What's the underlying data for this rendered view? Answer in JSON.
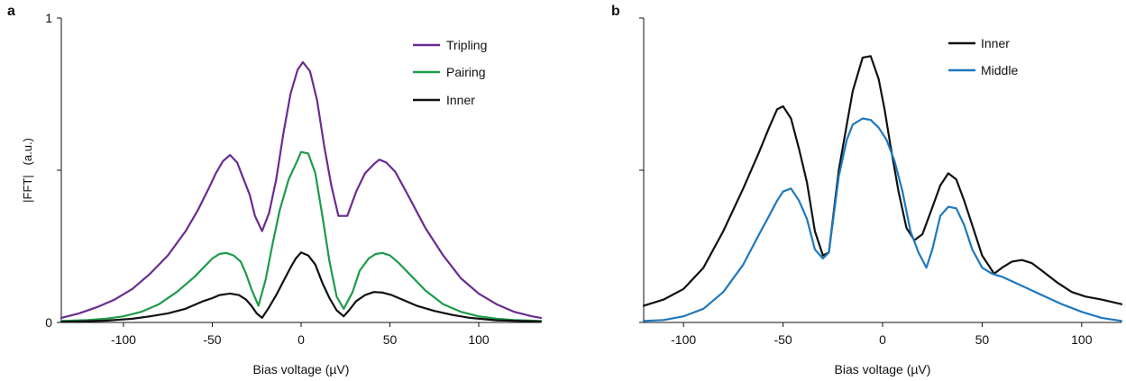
{
  "chart_data": [
    {
      "panel_label": "a",
      "type": "line",
      "xlabel": "Bias voltage (µV)",
      "ylabel": "|FFT|   (a.u.)",
      "xlim": [
        -135,
        135
      ],
      "ylim": [
        0,
        1
      ],
      "x_ticks": [
        -100,
        -50,
        0,
        50,
        100
      ],
      "x_tick_labels": [
        "-100",
        "-50",
        "0",
        "50",
        "100"
      ],
      "y_ticks": [
        0,
        0.5,
        1
      ],
      "y_tick_labels": [
        "0",
        "",
        "1"
      ],
      "grid": false,
      "legend_position": "top-right",
      "series": [
        {
          "name": "Tripling",
          "color": "#6a2c91",
          "points": [
            [
              -135,
              0.015
            ],
            [
              -125,
              0.03
            ],
            [
              -115,
              0.05
            ],
            [
              -105,
              0.075
            ],
            [
              -95,
              0.11
            ],
            [
              -85,
              0.16
            ],
            [
              -75,
              0.22
            ],
            [
              -65,
              0.3
            ],
            [
              -58,
              0.37
            ],
            [
              -52,
              0.44
            ],
            [
              -48,
              0.49
            ],
            [
              -44,
              0.53
            ],
            [
              -40,
              0.55
            ],
            [
              -36,
              0.525
            ],
            [
              -33,
              0.48
            ],
            [
              -29,
              0.42
            ],
            [
              -26,
              0.35
            ],
            [
              -22,
              0.3
            ],
            [
              -18,
              0.36
            ],
            [
              -14,
              0.47
            ],
            [
              -10,
              0.62
            ],
            [
              -6,
              0.75
            ],
            [
              -2,
              0.83
            ],
            [
              1,
              0.855
            ],
            [
              5,
              0.825
            ],
            [
              9,
              0.73
            ],
            [
              13,
              0.58
            ],
            [
              17,
              0.45
            ],
            [
              21,
              0.35
            ],
            [
              26,
              0.35
            ],
            [
              31,
              0.43
            ],
            [
              36,
              0.49
            ],
            [
              41,
              0.52
            ],
            [
              44,
              0.535
            ],
            [
              48,
              0.525
            ],
            [
              53,
              0.495
            ],
            [
              60,
              0.42
            ],
            [
              70,
              0.31
            ],
            [
              80,
              0.22
            ],
            [
              90,
              0.145
            ],
            [
              100,
              0.095
            ],
            [
              110,
              0.06
            ],
            [
              120,
              0.035
            ],
            [
              130,
              0.02
            ],
            [
              135,
              0.015
            ]
          ]
        },
        {
          "name": "Pairing",
          "color": "#1e9b4a",
          "points": [
            [
              -135,
              0.005
            ],
            [
              -120,
              0.008
            ],
            [
              -110,
              0.012
            ],
            [
              -100,
              0.02
            ],
            [
              -90,
              0.035
            ],
            [
              -80,
              0.06
            ],
            [
              -70,
              0.1
            ],
            [
              -60,
              0.15
            ],
            [
              -55,
              0.18
            ],
            [
              -50,
              0.21
            ],
            [
              -46,
              0.225
            ],
            [
              -42,
              0.228
            ],
            [
              -38,
              0.22
            ],
            [
              -34,
              0.2
            ],
            [
              -31,
              0.16
            ],
            [
              -28,
              0.11
            ],
            [
              -24,
              0.055
            ],
            [
              -20,
              0.14
            ],
            [
              -16,
              0.26
            ],
            [
              -12,
              0.37
            ],
            [
              -7,
              0.47
            ],
            [
              -3,
              0.52
            ],
            [
              0,
              0.56
            ],
            [
              4,
              0.555
            ],
            [
              8,
              0.49
            ],
            [
              12,
              0.35
            ],
            [
              16,
              0.2
            ],
            [
              20,
              0.085
            ],
            [
              24,
              0.045
            ],
            [
              29,
              0.1
            ],
            [
              33,
              0.17
            ],
            [
              38,
              0.21
            ],
            [
              42,
              0.225
            ],
            [
              46,
              0.228
            ],
            [
              50,
              0.22
            ],
            [
              55,
              0.195
            ],
            [
              60,
              0.165
            ],
            [
              70,
              0.105
            ],
            [
              80,
              0.06
            ],
            [
              90,
              0.035
            ],
            [
              100,
              0.02
            ],
            [
              110,
              0.012
            ],
            [
              120,
              0.008
            ],
            [
              135,
              0.005
            ]
          ]
        },
        {
          "name": "Inner",
          "color": "#111111",
          "points": [
            [
              -135,
              0.002
            ],
            [
              -110,
              0.006
            ],
            [
              -95,
              0.012
            ],
            [
              -85,
              0.02
            ],
            [
              -75,
              0.03
            ],
            [
              -65,
              0.045
            ],
            [
              -55,
              0.07
            ],
            [
              -50,
              0.08
            ],
            [
              -46,
              0.09
            ],
            [
              -40,
              0.095
            ],
            [
              -35,
              0.09
            ],
            [
              -31,
              0.075
            ],
            [
              -28,
              0.055
            ],
            [
              -25,
              0.03
            ],
            [
              -22,
              0.015
            ],
            [
              -18,
              0.05
            ],
            [
              -14,
              0.09
            ],
            [
              -10,
              0.135
            ],
            [
              -6,
              0.18
            ],
            [
              -3,
              0.21
            ],
            [
              0,
              0.23
            ],
            [
              4,
              0.22
            ],
            [
              8,
              0.19
            ],
            [
              12,
              0.13
            ],
            [
              16,
              0.08
            ],
            [
              20,
              0.04
            ],
            [
              24,
              0.02
            ],
            [
              27,
              0.04
            ],
            [
              31,
              0.07
            ],
            [
              36,
              0.09
            ],
            [
              41,
              0.1
            ],
            [
              46,
              0.098
            ],
            [
              51,
              0.09
            ],
            [
              57,
              0.075
            ],
            [
              65,
              0.055
            ],
            [
              75,
              0.038
            ],
            [
              85,
              0.025
            ],
            [
              95,
              0.015
            ],
            [
              110,
              0.007
            ],
            [
              135,
              0.003
            ]
          ]
        }
      ]
    },
    {
      "panel_label": "b",
      "type": "line",
      "xlabel": "Bias voltage (µV)",
      "ylabel": "",
      "xlim": [
        -120,
        120
      ],
      "ylim": [
        0,
        1
      ],
      "x_ticks": [
        -100,
        -50,
        0,
        50,
        100
      ],
      "x_tick_labels": [
        "-100",
        "-50",
        "0",
        "50",
        "100"
      ],
      "y_ticks": [
        0,
        0.5,
        1
      ],
      "y_tick_labels": [
        "",
        "",
        ""
      ],
      "grid": false,
      "legend_position": "top-right",
      "series": [
        {
          "name": "Inner",
          "color": "#111111",
          "points": [
            [
              -120,
              0.055
            ],
            [
              -110,
              0.075
            ],
            [
              -100,
              0.11
            ],
            [
              -90,
              0.18
            ],
            [
              -80,
              0.3
            ],
            [
              -70,
              0.44
            ],
            [
              -62,
              0.56
            ],
            [
              -57,
              0.64
            ],
            [
              -53,
              0.7
            ],
            [
              -50,
              0.71
            ],
            [
              -46,
              0.67
            ],
            [
              -42,
              0.57
            ],
            [
              -38,
              0.46
            ],
            [
              -34,
              0.3
            ],
            [
              -30,
              0.22
            ],
            [
              -27,
              0.23
            ],
            [
              -22,
              0.5
            ],
            [
              -18,
              0.65
            ],
            [
              -15,
              0.76
            ],
            [
              -10,
              0.87
            ],
            [
              -6,
              0.875
            ],
            [
              -2,
              0.8
            ],
            [
              1,
              0.7
            ],
            [
              4,
              0.58
            ],
            [
              8,
              0.43
            ],
            [
              12,
              0.31
            ],
            [
              16,
              0.27
            ],
            [
              20,
              0.29
            ],
            [
              24,
              0.36
            ],
            [
              29,
              0.45
            ],
            [
              33,
              0.49
            ],
            [
              37,
              0.47
            ],
            [
              41,
              0.4
            ],
            [
              45,
              0.32
            ],
            [
              50,
              0.22
            ],
            [
              56,
              0.16
            ],
            [
              60,
              0.18
            ],
            [
              65,
              0.2
            ],
            [
              70,
              0.205
            ],
            [
              75,
              0.195
            ],
            [
              80,
              0.17
            ],
            [
              88,
              0.13
            ],
            [
              95,
              0.1
            ],
            [
              102,
              0.085
            ],
            [
              110,
              0.075
            ],
            [
              120,
              0.06
            ]
          ]
        },
        {
          "name": "Middle",
          "color": "#1f78bd",
          "points": [
            [
              -120,
              0.005
            ],
            [
              -110,
              0.008
            ],
            [
              -100,
              0.02
            ],
            [
              -90,
              0.045
            ],
            [
              -80,
              0.1
            ],
            [
              -70,
              0.19
            ],
            [
              -62,
              0.29
            ],
            [
              -57,
              0.35
            ],
            [
              -53,
              0.4
            ],
            [
              -50,
              0.43
            ],
            [
              -46,
              0.44
            ],
            [
              -42,
              0.4
            ],
            [
              -38,
              0.34
            ],
            [
              -34,
              0.24
            ],
            [
              -30,
              0.21
            ],
            [
              -27,
              0.23
            ],
            [
              -22,
              0.48
            ],
            [
              -18,
              0.6
            ],
            [
              -15,
              0.65
            ],
            [
              -10,
              0.67
            ],
            [
              -6,
              0.665
            ],
            [
              -2,
              0.64
            ],
            [
              2,
              0.6
            ],
            [
              6,
              0.53
            ],
            [
              10,
              0.43
            ],
            [
              14,
              0.3
            ],
            [
              18,
              0.23
            ],
            [
              22,
              0.18
            ],
            [
              25,
              0.24
            ],
            [
              29,
              0.35
            ],
            [
              33,
              0.38
            ],
            [
              37,
              0.375
            ],
            [
              41,
              0.32
            ],
            [
              45,
              0.24
            ],
            [
              50,
              0.18
            ],
            [
              55,
              0.16
            ],
            [
              60,
              0.15
            ],
            [
              70,
              0.12
            ],
            [
              80,
              0.09
            ],
            [
              90,
              0.06
            ],
            [
              100,
              0.035
            ],
            [
              110,
              0.015
            ],
            [
              120,
              0.005
            ]
          ]
        }
      ]
    }
  ]
}
